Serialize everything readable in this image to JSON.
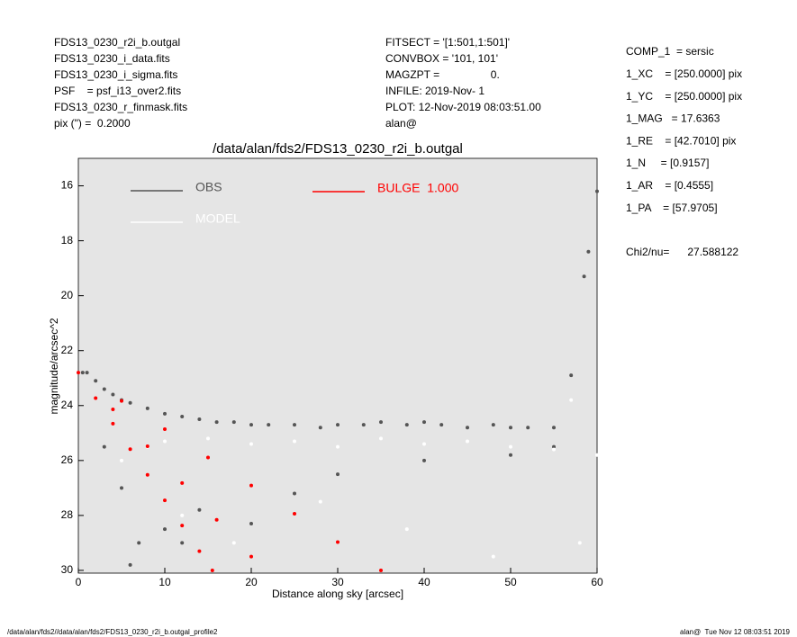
{
  "header": {
    "left": [
      "FDS13_0230_r2i_b.outgal",
      "FDS13_0230_i_data.fits",
      "FDS13_0230_i_sigma.fits",
      "PSF    = psf_i13_over2.fits",
      "FDS13_0230_r_finmask.fits",
      "pix (\") =  0.2000"
    ],
    "middle": [
      "FITSECT = '[1:501,1:501]'",
      "CONVBOX = '101, 101'",
      "MAGZPT =                 0.",
      "INFILE: 2019-Nov- 1",
      "PLOT: 12-Nov-2019 08:03:51.00",
      "alan@"
    ],
    "right": [
      "COMP_1  = sersic",
      "1_XC    = [250.0000] pix",
      "1_YC    = [250.0000] pix",
      "1_MAG   = 17.6363",
      "1_RE    = [42.7010] pix",
      "1_N     = [0.9157]",
      "1_AR    = [0.4555]",
      "1_PA    = [57.9705]"
    ],
    "chi2": "Chi2/nu=      27.588122"
  },
  "footer": {
    "left": "/data/alan/fds2//data/alan/fds2/FDS13_0230_r2i_b.outgal_profile2",
    "right": "alan@  Tue Nov 12 08:03:51 2019"
  },
  "chart_data": {
    "type": "scatter",
    "title": "/data/alan/fds2/FDS13_0230_r2i_b.outgal",
    "x_label": "Distance along sky [arcsec]",
    "y_label": "magnitude/arcsec^2",
    "xlim": [
      0,
      60
    ],
    "xticks": [
      0,
      10,
      20,
      30,
      40,
      50,
      60
    ],
    "ylim": [
      30.1,
      15
    ],
    "yticks": [
      16,
      18,
      20,
      22,
      24,
      26,
      28,
      30
    ],
    "background": "#e5e5e5",
    "series": [
      {
        "name": "OBS",
        "color": "#555555",
        "x": [
          0.5,
          1,
          2,
          3,
          4,
          5,
          6,
          8,
          10,
          12,
          14,
          16,
          18,
          20,
          22,
          25,
          28,
          30,
          33,
          35,
          38,
          40,
          42,
          45,
          48,
          50,
          52,
          55,
          57,
          58.5,
          59,
          60,
          3,
          5,
          7,
          10,
          14,
          20,
          25,
          30,
          40,
          50,
          55,
          6,
          12
        ],
        "values": [
          22.8,
          22.8,
          23.1,
          23.4,
          23.6,
          23.8,
          23.9,
          24.1,
          24.3,
          24.4,
          24.5,
          24.6,
          24.6,
          24.7,
          24.7,
          24.7,
          24.8,
          24.7,
          24.7,
          24.6,
          24.7,
          24.6,
          24.7,
          24.8,
          24.7,
          24.8,
          24.8,
          24.8,
          22.9,
          19.3,
          18.4,
          16.2,
          25.5,
          27,
          29,
          28.5,
          27.8,
          28.3,
          27.2,
          26.5,
          26,
          25.8,
          25.5,
          29.8,
          29
        ]
      },
      {
        "name": "MODEL",
        "color": "#ffffff",
        "x": [
          5,
          8,
          10,
          15,
          20,
          25,
          30,
          35,
          40,
          45,
          50,
          55,
          60,
          12,
          18,
          28,
          38,
          48,
          58,
          57
        ],
        "values": [
          26,
          25.5,
          25.3,
          25.2,
          25.4,
          25.3,
          25.5,
          25.2,
          25.4,
          25.3,
          25.5,
          25.6,
          25.8,
          28,
          29,
          27.5,
          28.5,
          29.5,
          29,
          23.8
        ]
      },
      {
        "name": "BULGE  1.000",
        "color": "#ff0000",
        "x": [
          0,
          5,
          10,
          15,
          20,
          25,
          30,
          35,
          2,
          4,
          6,
          8,
          10,
          12,
          14,
          15.5,
          4,
          8,
          12,
          16,
          20
        ],
        "values": [
          22.8,
          23.83,
          24.86,
          25.89,
          26.91,
          27.94,
          28.97,
          30.0,
          23.73,
          24.66,
          25.59,
          26.52,
          27.45,
          28.37,
          29.3,
          30.0,
          24.14,
          25.48,
          26.82,
          28.16,
          29.5
        ]
      }
    ]
  }
}
